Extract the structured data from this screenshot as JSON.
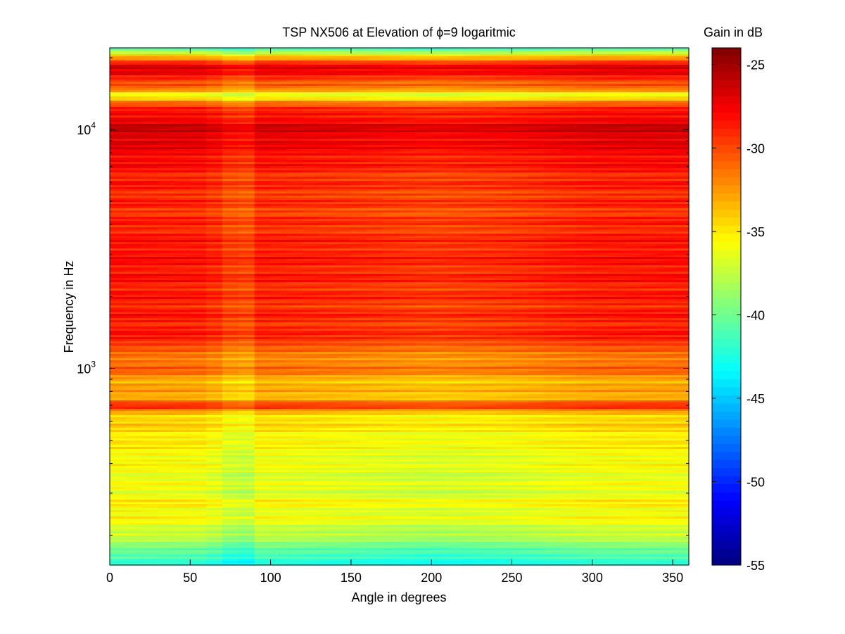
{
  "chart_data": {
    "type": "heatmap",
    "title": "TSP NX506 at Elevation of ϕ=9 logaritmic",
    "xlabel": "Angle in degrees",
    "ylabel": "Frequency in Hz",
    "x_ticks": [
      "0",
      "50",
      "100",
      "150",
      "200",
      "250",
      "300",
      "350"
    ],
    "x_tick_values": [
      0,
      50,
      100,
      150,
      200,
      250,
      300,
      350
    ],
    "xlim": [
      0,
      360
    ],
    "y_scale": "log",
    "y_ticks": [
      {
        "base": "10",
        "exp": "3",
        "value": 1000
      },
      {
        "base": "10",
        "exp": "4",
        "value": 10000
      }
    ],
    "ylim": [
      150,
      22000
    ],
    "colorbar": {
      "label": "Gain in dB",
      "colormap": "jet",
      "clim": [
        -55,
        -24
      ],
      "ticks": [
        "-25",
        "-30",
        "-35",
        "-40",
        "-45",
        "-50",
        "-55"
      ],
      "tick_values": [
        -25,
        -30,
        -35,
        -40,
        -45,
        -50,
        -55
      ]
    },
    "approximate_gain_profile_db": [
      {
        "freq_hz": 150,
        "gain_db": -43
      },
      {
        "freq_hz": 185,
        "gain_db": -39
      },
      {
        "freq_hz": 210,
        "gain_db": -37
      },
      {
        "freq_hz": 260,
        "gain_db": -35.5
      },
      {
        "freq_hz": 320,
        "gain_db": -36.5
      },
      {
        "freq_hz": 420,
        "gain_db": -36
      },
      {
        "freq_hz": 550,
        "gain_db": -35
      },
      {
        "freq_hz": 650,
        "gain_db": -34
      },
      {
        "freq_hz": 700,
        "gain_db": -29
      },
      {
        "freq_hz": 760,
        "gain_db": -33.5
      },
      {
        "freq_hz": 900,
        "gain_db": -33
      },
      {
        "freq_hz": 1000,
        "gain_db": -31
      },
      {
        "freq_hz": 1150,
        "gain_db": -32
      },
      {
        "freq_hz": 1300,
        "gain_db": -29
      },
      {
        "freq_hz": 2000,
        "gain_db": -29
      },
      {
        "freq_hz": 3000,
        "gain_db": -28.5
      },
      {
        "freq_hz": 4500,
        "gain_db": -29.5
      },
      {
        "freq_hz": 6500,
        "gain_db": -29
      },
      {
        "freq_hz": 8500,
        "gain_db": -27.5
      },
      {
        "freq_hz": 10000,
        "gain_db": -26.5
      },
      {
        "freq_hz": 11500,
        "gain_db": -28
      },
      {
        "freq_hz": 13000,
        "gain_db": -31
      },
      {
        "freq_hz": 14000,
        "gain_db": -37
      },
      {
        "freq_hz": 15000,
        "gain_db": -31
      },
      {
        "freq_hz": 16500,
        "gain_db": -29
      },
      {
        "freq_hz": 18500,
        "gain_db": -26.5
      },
      {
        "freq_hz": 20000,
        "gain_db": -33
      },
      {
        "freq_hz": 22000,
        "gain_db": -42
      }
    ],
    "approximate_angle_variation_db": [
      {
        "angle_deg": 0,
        "offset_db": 0.4
      },
      {
        "angle_deg": 60,
        "offset_db": 0.2
      },
      {
        "angle_deg": 75,
        "offset_db": -1.0
      },
      {
        "angle_deg": 85,
        "offset_db": -1.2
      },
      {
        "angle_deg": 95,
        "offset_db": 0.0
      },
      {
        "angle_deg": 150,
        "offset_db": -0.3
      },
      {
        "angle_deg": 200,
        "offset_db": -0.7
      },
      {
        "angle_deg": 250,
        "offset_db": -0.4
      },
      {
        "angle_deg": 300,
        "offset_db": 0.2
      },
      {
        "angle_deg": 360,
        "offset_db": 0.3
      }
    ]
  }
}
